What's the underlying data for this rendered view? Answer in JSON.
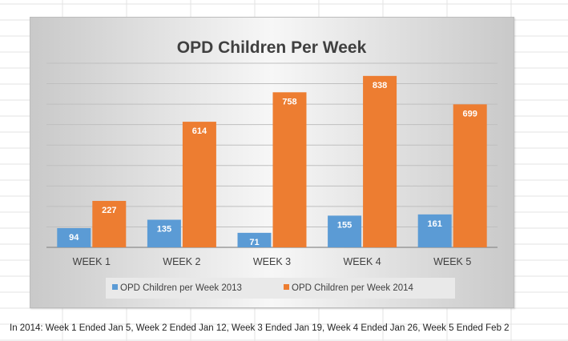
{
  "chart_data": {
    "type": "bar",
    "title": "OPD Children Per Week",
    "categories": [
      "WEEK 1",
      "WEEK 2",
      "WEEK 3",
      "WEEK 4",
      "WEEK 5"
    ],
    "series": [
      {
        "name": "OPD Children per Week 2013",
        "values": [
          94,
          135,
          71,
          155,
          161
        ],
        "color": "#5b9bd5"
      },
      {
        "name": "OPD Children per Week 2014",
        "values": [
          227,
          614,
          758,
          838,
          699
        ],
        "color": "#ed7d31"
      }
    ],
    "ylim": [
      0,
      900
    ],
    "grid": true,
    "legend_position": "bottom",
    "data_labels": true
  },
  "footnote": "In 2014:  Week 1 Ended Jan 5, Week 2 Ended Jan 12, Week 3 Ended Jan 19, Week 4 Ended Jan 26, Week 5 Ended Feb 2"
}
